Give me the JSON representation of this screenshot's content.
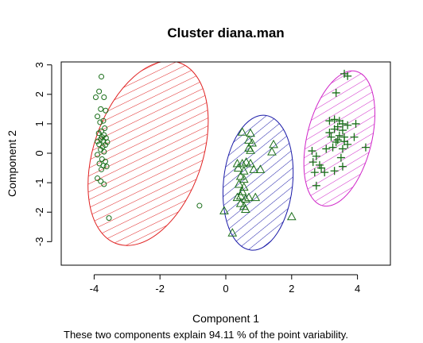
{
  "chart_data": {
    "type": "scatter",
    "title": "Cluster diana.man",
    "xlabel": "Component 1",
    "ylabel": "Component 2",
    "subtitle": "These two components explain 94.11 % of the point variability.",
    "xlim": [
      -5,
      5
    ],
    "ylim": [
      -3.8,
      3.1
    ],
    "x_ticks": [
      "-4",
      "-2",
      "0",
      "2",
      "4"
    ],
    "x_tick_values": [
      -4,
      -2,
      0,
      2,
      4
    ],
    "y_ticks": [
      "-3",
      "-2",
      "-1",
      "0",
      "1",
      "2",
      "3"
    ],
    "y_tick_values": [
      -3,
      -2,
      -1,
      0,
      1,
      2,
      3
    ],
    "point_color": "#1a6e1a",
    "clusters": [
      {
        "marker": "circle",
        "ellipse_color": "#e02020",
        "ellipse": {
          "center": [
            -2.36,
            0.0
          ],
          "semi_axes": [
            1.65,
            3.25
          ],
          "angle_deg": 19
        },
        "points": [
          [
            -3.78,
            2.6
          ],
          [
            -3.85,
            2.1
          ],
          [
            -3.95,
            1.9
          ],
          [
            -3.7,
            1.9
          ],
          [
            -3.8,
            1.5
          ],
          [
            -3.65,
            1.45
          ],
          [
            -3.9,
            1.25
          ],
          [
            -3.72,
            1.1
          ],
          [
            -3.82,
            1.05
          ],
          [
            -3.68,
            0.85
          ],
          [
            -3.78,
            0.75
          ],
          [
            -3.86,
            0.68
          ],
          [
            -3.7,
            0.62
          ],
          [
            -3.76,
            0.55
          ],
          [
            -3.64,
            0.52
          ],
          [
            -3.8,
            0.48
          ],
          [
            -3.72,
            0.42
          ],
          [
            -3.9,
            0.4
          ],
          [
            -3.6,
            0.38
          ],
          [
            -3.85,
            0.3
          ],
          [
            -3.66,
            0.28
          ],
          [
            -3.74,
            0.22
          ],
          [
            -3.8,
            0.12
          ],
          [
            -3.7,
            0.05
          ],
          [
            -3.9,
            -0.05
          ],
          [
            -3.76,
            -0.2
          ],
          [
            -3.66,
            -0.28
          ],
          [
            -3.84,
            -0.35
          ],
          [
            -3.72,
            -0.42
          ],
          [
            -3.62,
            -0.45
          ],
          [
            -3.78,
            -0.55
          ],
          [
            -3.9,
            -0.85
          ],
          [
            -3.8,
            -0.95
          ],
          [
            -3.7,
            -1.05
          ],
          [
            -3.55,
            -2.2
          ],
          [
            -0.8,
            -1.78
          ]
        ]
      },
      {
        "marker": "triangle",
        "ellipse_color": "#1a1aa8",
        "ellipse": {
          "center": [
            0.98,
            -1.0
          ],
          "semi_axes": [
            1.05,
            2.3
          ],
          "angle_deg": 6
        },
        "points": [
          [
            0.5,
            0.72
          ],
          [
            0.75,
            0.68
          ],
          [
            0.7,
            0.45
          ],
          [
            0.8,
            0.35
          ],
          [
            0.7,
            0.18
          ],
          [
            0.75,
            0.1
          ],
          [
            1.45,
            0.3
          ],
          [
            1.4,
            0.05
          ],
          [
            0.35,
            -0.35
          ],
          [
            0.5,
            -0.35
          ],
          [
            0.62,
            -0.3
          ],
          [
            0.75,
            -0.35
          ],
          [
            0.38,
            -0.5
          ],
          [
            0.55,
            -0.6
          ],
          [
            0.85,
            -0.55
          ],
          [
            1.05,
            -0.55
          ],
          [
            0.45,
            -0.78
          ],
          [
            0.55,
            -0.88
          ],
          [
            0.4,
            -1.05
          ],
          [
            0.55,
            -1.15
          ],
          [
            0.5,
            -1.3
          ],
          [
            0.45,
            -1.45
          ],
          [
            0.35,
            -1.5
          ],
          [
            0.6,
            -1.55
          ],
          [
            0.7,
            -1.5
          ],
          [
            0.9,
            -1.5
          ],
          [
            0.45,
            -1.7
          ],
          [
            0.55,
            -1.8
          ],
          [
            0.6,
            -1.9
          ],
          [
            -0.05,
            -1.95
          ],
          [
            2.0,
            -2.15
          ],
          [
            0.2,
            -2.7
          ]
        ]
      },
      {
        "marker": "plus",
        "ellipse_color": "#d024c8",
        "ellipse": {
          "center": [
            3.45,
            0.5
          ],
          "semi_axes": [
            0.98,
            2.35
          ],
          "angle_deg": 14
        },
        "points": [
          [
            3.6,
            2.7
          ],
          [
            3.7,
            2.62
          ],
          [
            3.35,
            2.05
          ],
          [
            3.15,
            1.1
          ],
          [
            3.3,
            1.15
          ],
          [
            3.45,
            1.1
          ],
          [
            3.55,
            1.0
          ],
          [
            3.7,
            0.95
          ],
          [
            3.95,
            1.0
          ],
          [
            3.4,
            0.9
          ],
          [
            3.3,
            0.82
          ],
          [
            3.55,
            0.78
          ],
          [
            3.15,
            0.7
          ],
          [
            3.45,
            0.6
          ],
          [
            3.6,
            0.55
          ],
          [
            3.2,
            0.55
          ],
          [
            3.4,
            0.45
          ],
          [
            3.35,
            0.38
          ],
          [
            3.25,
            0.2
          ],
          [
            3.55,
            0.15
          ],
          [
            3.05,
            0.15
          ],
          [
            4.25,
            0.2
          ],
          [
            3.7,
            0.3
          ],
          [
            3.6,
            0.4
          ],
          [
            2.75,
            -0.1
          ],
          [
            2.65,
            -0.3
          ],
          [
            2.85,
            -0.4
          ],
          [
            3.55,
            -0.45
          ],
          [
            3.3,
            -0.6
          ],
          [
            3.0,
            -0.65
          ],
          [
            2.7,
            -0.65
          ],
          [
            2.75,
            -1.1
          ],
          [
            2.62,
            0.08
          ],
          [
            3.9,
            0.55
          ],
          [
            3.5,
            -0.15
          ],
          [
            2.9,
            -0.5
          ]
        ]
      }
    ]
  }
}
